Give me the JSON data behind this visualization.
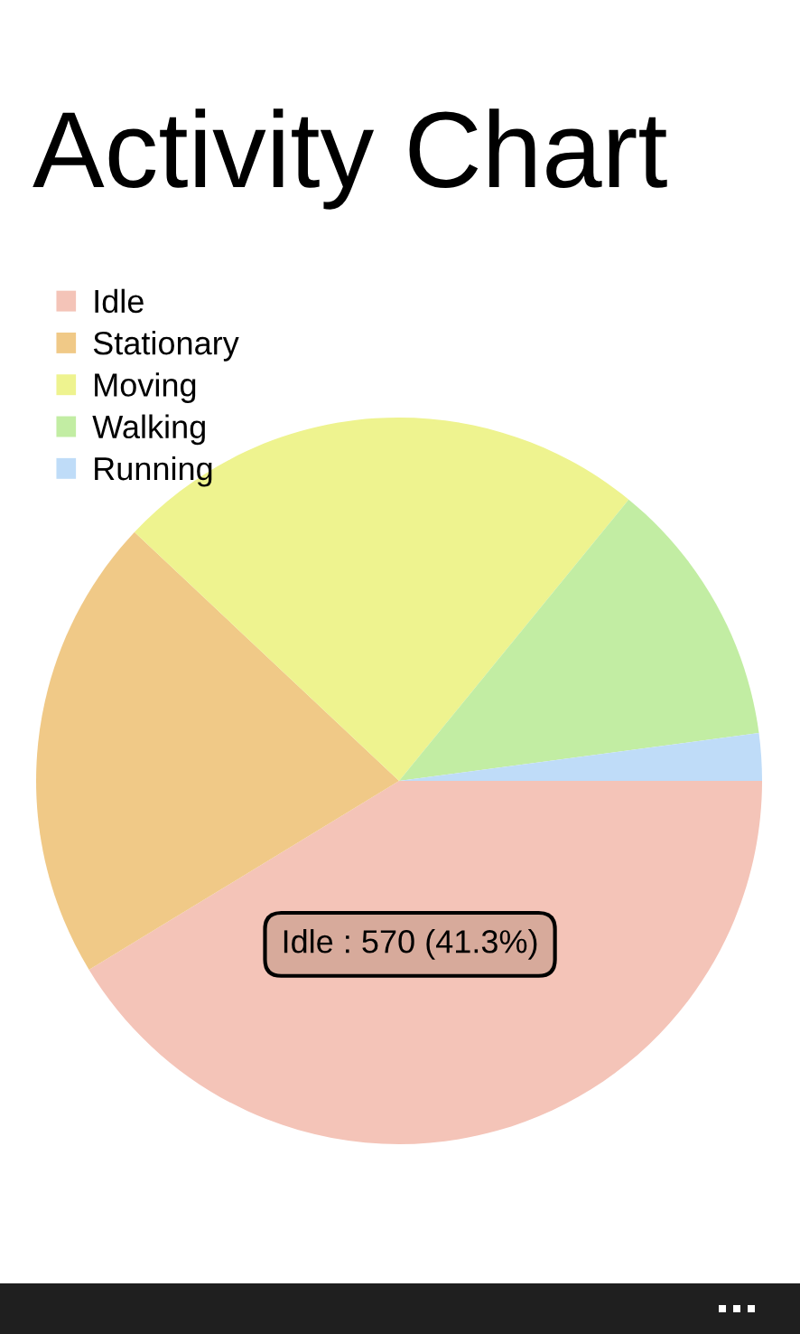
{
  "chart_data": {
    "type": "pie",
    "title": "Activity Chart",
    "categories": [
      "Idle",
      "Stationary",
      "Moving",
      "Walking",
      "Running"
    ],
    "values": [
      41.3,
      20.7,
      23.9,
      12.0,
      2.1
    ],
    "colors": [
      "#f4c4b8",
      "#f0c987",
      "#eef38f",
      "#c2eda3",
      "#bfdcf8"
    ],
    "legend": "top left",
    "annotations": [
      "Idle : 570 (41.3%)"
    ]
  }
}
